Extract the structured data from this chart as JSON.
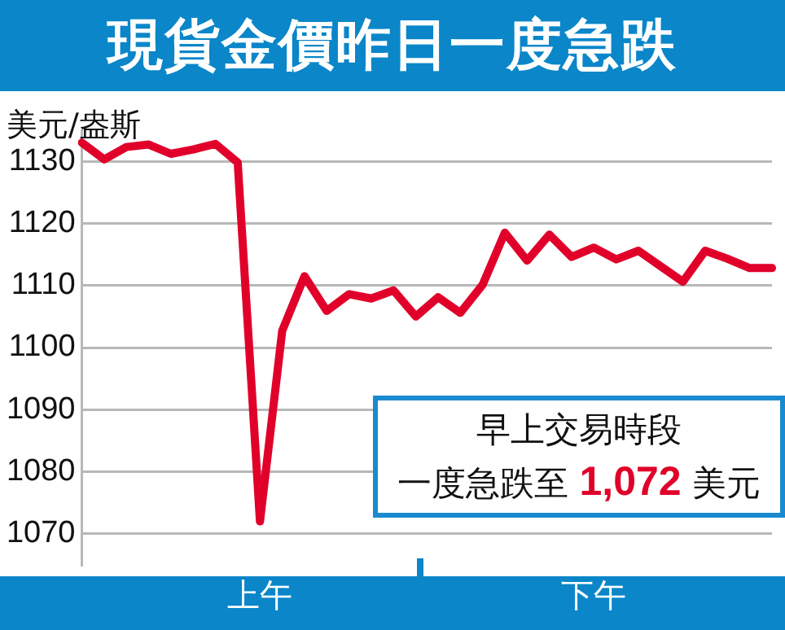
{
  "chart_data": {
    "type": "line",
    "title": "現貨金價昨日一度急跌",
    "ylabel": "美元/盎斯",
    "categories": [
      null,
      null,
      null,
      null,
      null,
      null,
      null,
      null,
      "上午",
      null,
      null,
      null,
      null,
      null,
      null,
      null,
      null,
      null,
      null,
      null,
      null,
      null,
      null,
      "下午",
      null,
      null,
      null,
      null,
      null,
      null,
      null,
      null
    ],
    "series": [
      {
        "color": "#e0002a",
        "values": [
          1133,
          1130.3,
          1132.3,
          1132.7,
          1131.2,
          1131.9,
          1132.8,
          1129.8,
          1072,
          1102.7,
          1111.5,
          1105.9,
          1108.6,
          1107.9,
          1109.2,
          1105,
          1108.1,
          1105.6,
          1110.1,
          1118.5,
          1114,
          1118.2,
          1114.6,
          1116.1,
          1114.2,
          1115.6,
          1113.1,
          1110.6,
          1115.6,
          1114.3,
          1112.8,
          1112.8
        ]
      }
    ],
    "ylim": [
      1065,
      1135
    ],
    "yticks": [
      1070,
      1080,
      1090,
      1100,
      1110,
      1120,
      1130
    ],
    "grid": "y",
    "marker": "none",
    "line_style": "solid",
    "annotations": [
      "早上交易時段",
      "一度急跌至 1,072 美元"
    ]
  }
}
